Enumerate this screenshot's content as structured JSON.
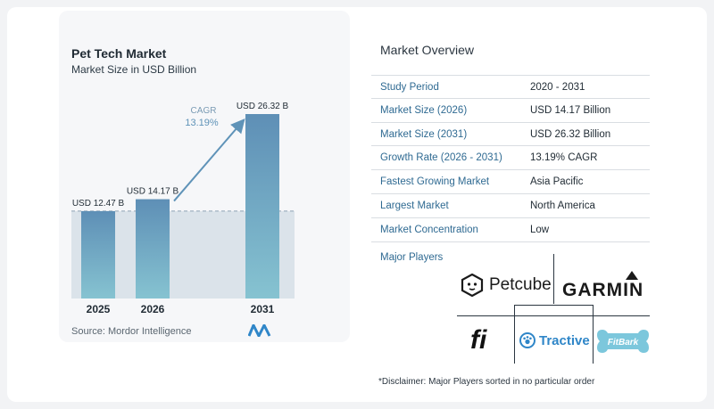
{
  "chart_data": {
    "type": "bar",
    "title": "Pet Tech Market",
    "subtitle": "Market Size in USD Billion",
    "categories": [
      "2025",
      "2026",
      "2031"
    ],
    "values": [
      12.47,
      14.17,
      26.32
    ],
    "data_labels": [
      "USD 12.47 B",
      "USD 14.17 B",
      "USD 26.32 B"
    ],
    "ylim": [
      0,
      26.32
    ],
    "cagr_label": "CAGR",
    "cagr_value": "13.19%",
    "bar_color": "#5f93b8",
    "baseline_color": "#c5d3df"
  },
  "source": "Source: Mordor Intelligence",
  "overview": {
    "title": "Market Overview",
    "rows": [
      {
        "label": "Study Period",
        "value": "2020 - 2031"
      },
      {
        "label": "Market Size (2026)",
        "value": "USD 14.17 Billion"
      },
      {
        "label": "Market Size (2031)",
        "value": "USD 26.32 Billion"
      },
      {
        "label": "Growth Rate (2026 - 2031)",
        "value": "13.19% CAGR"
      },
      {
        "label": "Fastest Growing Market",
        "value": "Asia Pacific"
      },
      {
        "label": "Largest Market",
        "value": "North America"
      },
      {
        "label": "Market Concentration",
        "value": "Low"
      }
    ]
  },
  "players": {
    "title": "Major Players",
    "items": [
      {
        "name": "Petcube",
        "icon": "petcube-logo-icon"
      },
      {
        "name": "GARMIN",
        "icon": "garmin-logo-icon"
      },
      {
        "name": "fi",
        "icon": "fi-logo-icon"
      },
      {
        "name": "Tractive",
        "icon": "tractive-logo-icon"
      },
      {
        "name": "FitBark",
        "icon": "fitbark-logo-icon"
      }
    ]
  },
  "disclaimer": "*Disclaimer: Major Players sorted in no particular order"
}
